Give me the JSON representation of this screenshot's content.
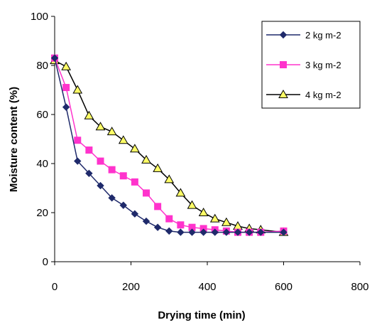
{
  "chart_data": {
    "type": "line",
    "xlabel": "Drying time (min)",
    "ylabel": "Moisture content (%)",
    "xlim": [
      0,
      800
    ],
    "ylim": [
      0,
      100
    ],
    "xticks": [
      "0",
      "200",
      "400",
      "600",
      "800"
    ],
    "yticks": [
      "0",
      "20",
      "40",
      "60",
      "80",
      "100"
    ],
    "grid": false,
    "legend": "top-right",
    "series": [
      {
        "name": "2 kg m-2",
        "color": "#1f2a6b",
        "marker": "diamond",
        "x": [
          0,
          30,
          60,
          90,
          120,
          150,
          180,
          210,
          240,
          270,
          300,
          330,
          360,
          390,
          420,
          450,
          480,
          510,
          540,
          600
        ],
        "y": [
          83,
          63,
          41,
          36,
          31,
          26,
          23,
          19.5,
          16.5,
          14,
          12.5,
          12,
          12,
          12,
          12,
          12,
          12,
          12,
          12,
          12
        ]
      },
      {
        "name": "3 kg m-2",
        "color": "#ff33cc",
        "marker": "square",
        "x": [
          0,
          30,
          60,
          90,
          120,
          150,
          180,
          210,
          240,
          270,
          300,
          330,
          360,
          390,
          420,
          450,
          480,
          510,
          540,
          600
        ],
        "y": [
          83,
          71,
          49.5,
          45.5,
          41,
          37.5,
          35,
          32.5,
          28,
          22.5,
          17.5,
          15,
          14,
          13.5,
          13,
          12.5,
          12,
          12,
          12,
          12.5
        ]
      },
      {
        "name": "4 kg m-2",
        "color": "#000000",
        "marker": "triangle",
        "marker_fill": "#ffff66",
        "x": [
          0,
          30,
          60,
          90,
          120,
          150,
          180,
          210,
          240,
          270,
          300,
          330,
          360,
          390,
          420,
          450,
          480,
          510,
          540,
          600
        ],
        "y": [
          82,
          79.5,
          70,
          59.5,
          55,
          53,
          49.5,
          46,
          41.5,
          38,
          33.5,
          28,
          23,
          20,
          17.5,
          16,
          14.5,
          13.5,
          13,
          12
        ]
      }
    ]
  }
}
